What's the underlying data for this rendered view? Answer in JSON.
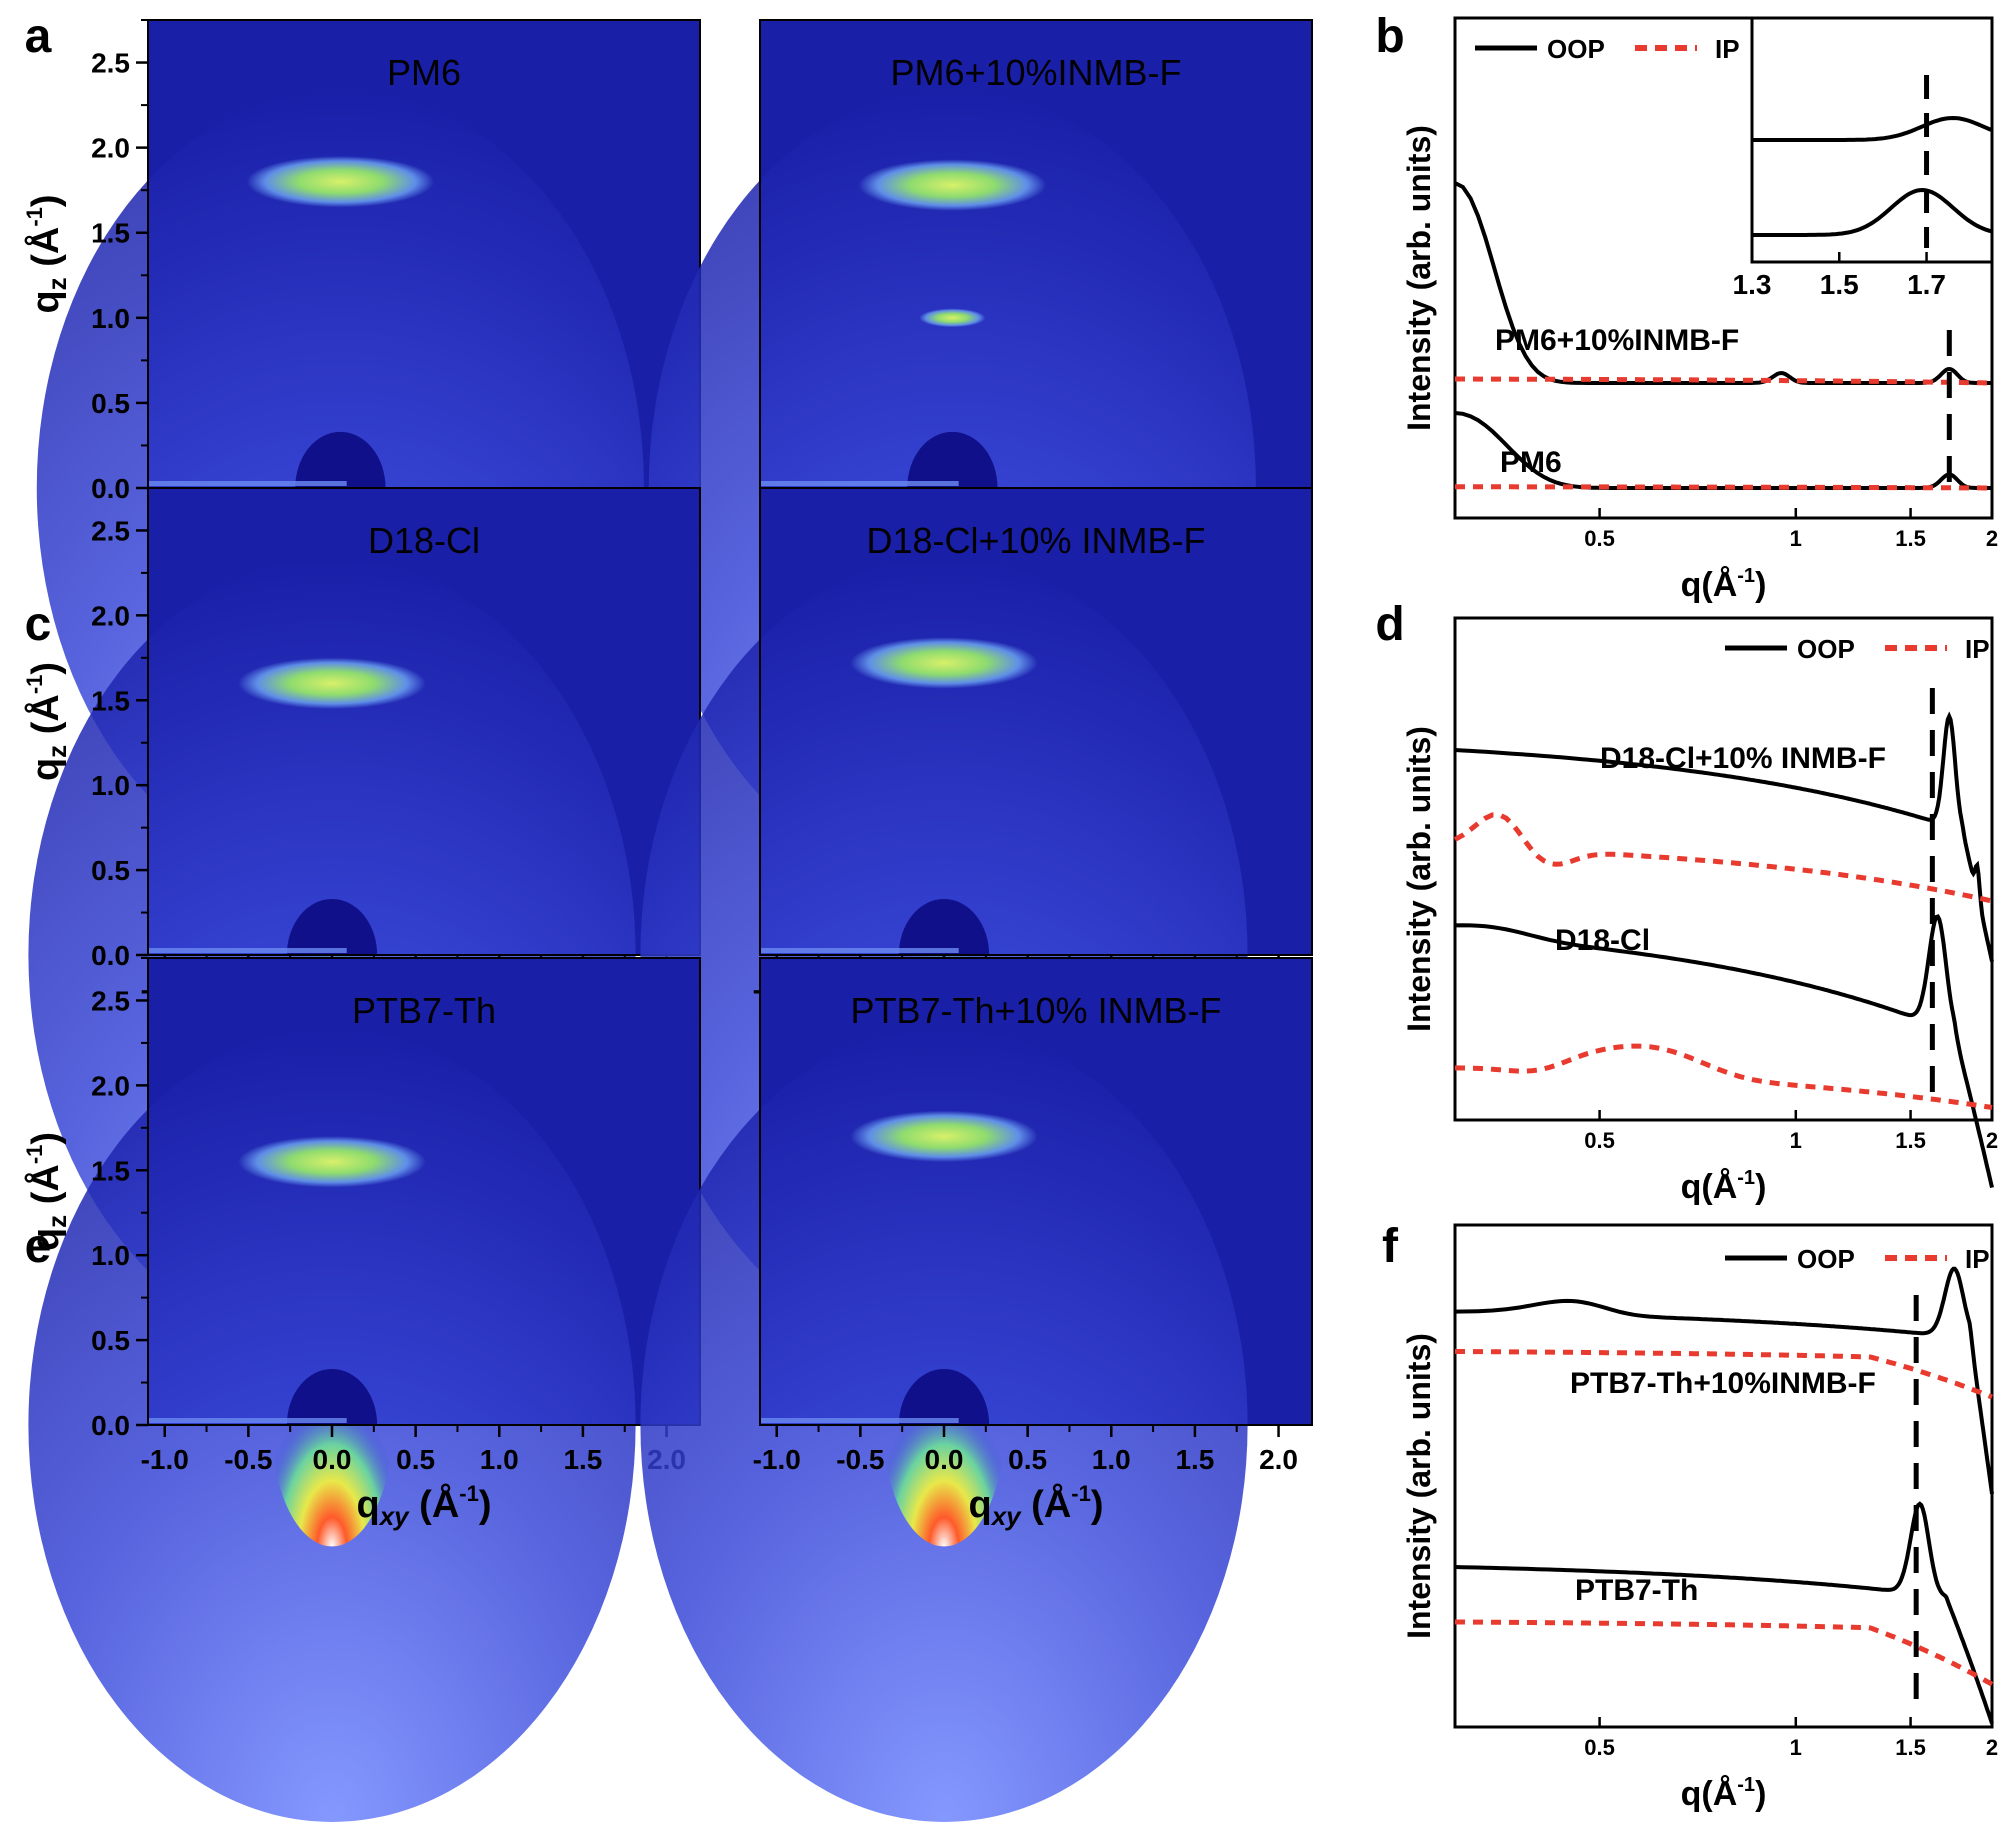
{
  "panel_letters": [
    "a",
    "b",
    "c",
    "d",
    "e",
    "f"
  ],
  "colors": {
    "oop": "#000000",
    "ip": "#e83a2e",
    "bg_dark": "#1a1fa8",
    "ring": "#9fe36a"
  },
  "gi_axes": {
    "x_ticks": [
      "-1.0",
      "-0.5",
      "0.0",
      "0.5",
      "1.0",
      "1.5",
      "2.0"
    ],
    "y_ticks": [
      "0.0",
      "0.5",
      "1.0",
      "1.5",
      "2.0",
      "2.5"
    ],
    "x_label": "q",
    "x_sub": "xy",
    "y_label": "q",
    "y_sub": "z",
    "unit": "(Å",
    "unit_sup": "-1",
    "unit_end": ")"
  },
  "gi_titles": [
    "PM6",
    "PM6+10%INMB-F",
    "D18-Cl",
    "D18-Cl+10% INMB-F",
    "PTB7-Th",
    "PTB7-Th+10% INMB-F"
  ],
  "profile_axes": {
    "x_ticks": [
      "0.5",
      "1",
      "1.5",
      "2"
    ],
    "x_label": "q(Å",
    "x_sup": "-1",
    "x_end": ")",
    "y_label": "Intensity (arb. units)",
    "legend_oop": "OOP",
    "legend_ip": "IP"
  },
  "chart_data": [
    {
      "panel": "a",
      "type": "heatmap",
      "title": "PM6",
      "xlim": [
        -1.15,
        2.15
      ],
      "ylim": [
        0,
        2.75
      ],
      "features": [
        {
          "q_xy": 0.0,
          "q_z": 1.8,
          "description": "pi-pi stacking arc"
        }
      ]
    },
    {
      "panel": "a",
      "type": "heatmap",
      "title": "PM6+10%INMB-F",
      "xlim": [
        -1.15,
        2.15
      ],
      "ylim": [
        0,
        2.75
      ],
      "features": [
        {
          "q_xy": 0.0,
          "q_z": 1.78
        },
        {
          "q_xy": 0.0,
          "q_z": 1.0
        }
      ]
    },
    {
      "panel": "b",
      "type": "line",
      "xlim": [
        0.3,
        2.0
      ],
      "ticks": [
        "0.5",
        "1",
        "1.5",
        "2"
      ],
      "series": [
        {
          "name": "OOP",
          "sample": "PM6+10%INMB-F",
          "x": [
            0.3,
            0.35,
            0.4,
            0.5,
            0.7,
            0.95,
            1.1,
            1.5,
            1.7,
            1.85,
            2.0
          ],
          "y": [
            1.0,
            0.45,
            0.18,
            0.02,
            0.0,
            0.03,
            0.0,
            0.01,
            0.04,
            0.0,
            0.0
          ]
        },
        {
          "name": "IP",
          "sample": "PM6+10%INMB-F",
          "x": [
            0.3,
            0.6,
            1.0,
            1.5,
            2.0
          ],
          "y": [
            0.0,
            0.0,
            0.0,
            0.0,
            0.0
          ]
        },
        {
          "name": "OOP",
          "sample": "PM6",
          "x": [
            0.3,
            0.35,
            0.4,
            0.5,
            0.7,
            1.0,
            1.5,
            1.7,
            1.85,
            2.0
          ],
          "y": [
            0.5,
            0.3,
            0.1,
            0.02,
            0.0,
            0.0,
            0.0,
            0.06,
            0.0,
            0.0
          ]
        },
        {
          "name": "IP",
          "sample": "PM6",
          "x": [
            0.3,
            0.6,
            1.0,
            1.5,
            2.0
          ],
          "y": [
            0.0,
            0.0,
            0.0,
            0.0,
            0.0
          ]
        }
      ],
      "labels": [
        "PM6+10%INMB-F",
        "PM6"
      ],
      "inset": {
        "xlim": [
          1.3,
          1.85
        ],
        "ticks": [
          "1.3",
          "1.5",
          "1.7"
        ],
        "peak_line_q": 1.7
      }
    },
    {
      "panel": "c",
      "type": "heatmap",
      "title": "D18-Cl",
      "xlim": [
        -1.1,
        2.2
      ],
      "ylim": [
        0,
        2.75
      ],
      "features": [
        {
          "q_xy": 0.0,
          "q_z": 1.6
        }
      ]
    },
    {
      "panel": "c",
      "type": "heatmap",
      "title": "D18-Cl+10% INMB-F",
      "xlim": [
        -1.1,
        2.2
      ],
      "ylim": [
        0,
        2.75
      ],
      "features": [
        {
          "q_xy": 0.0,
          "q_z": 1.72
        }
      ]
    },
    {
      "panel": "d",
      "type": "line",
      "xlim": [
        0.3,
        2.0
      ],
      "ticks": [
        "0.5",
        "1",
        "1.5",
        "2"
      ],
      "labels": [
        "D18-Cl+10% INMB-F",
        "D18-Cl"
      ],
      "peak_line_q": 1.65
    },
    {
      "panel": "e",
      "type": "heatmap",
      "title": "PTB7-Th",
      "xlim": [
        -1.1,
        2.2
      ],
      "ylim": [
        0,
        2.75
      ],
      "features": [
        {
          "q_xy": 0.0,
          "q_z": 1.55
        }
      ]
    },
    {
      "panel": "e",
      "type": "heatmap",
      "title": "PTB7-Th+10% INMB-F",
      "xlim": [
        -1.1,
        2.2
      ],
      "ylim": [
        0,
        2.75
      ],
      "features": [
        {
          "q_xy": 0.0,
          "q_z": 1.7
        }
      ]
    },
    {
      "panel": "f",
      "type": "line",
      "xlim": [
        0.3,
        2.0
      ],
      "ticks": [
        "0.5",
        "1",
        "1.5",
        "2"
      ],
      "labels": [
        "PTB7-Th+10%INMB-F",
        "PTB7-Th"
      ],
      "peak_line_q": 1.55
    }
  ]
}
